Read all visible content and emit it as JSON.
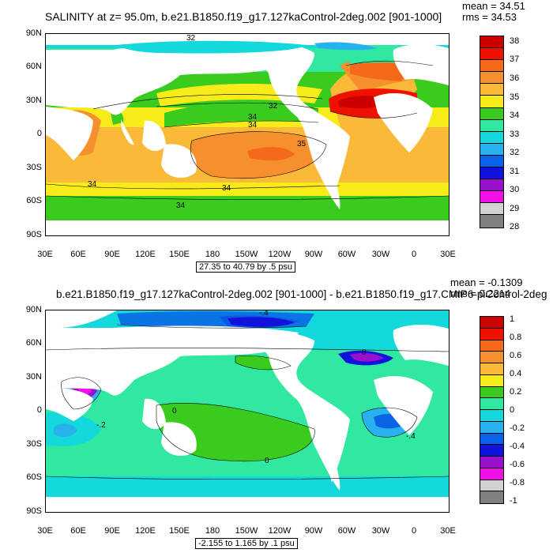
{
  "panels": [
    {
      "title": "SALINITY at z=  95.0m, b.e21.B1850.f19_g17.127kaControl-2deg.002 [901-1000]",
      "mean_label": "mean = 34.51",
      "rms_label": "rms = 34.53",
      "range_label": "27.35 to 40.79 by .5 psu",
      "contour_labels": [
        "32",
        "32",
        "34",
        "34",
        "35",
        "34",
        "34",
        "34"
      ],
      "colorbar": {
        "labels": [
          "38",
          "37",
          "36",
          "35",
          "34",
          "33",
          "32",
          "31",
          "30",
          "29",
          "28"
        ],
        "colors": [
          "#cc0000",
          "#ee1100",
          "#f56a1a",
          "#f6902e",
          "#fbb93a",
          "#f7ec19",
          "#39cc1e",
          "#31e8a0",
          "#13d8dc",
          "#27b2ee",
          "#0a63e6",
          "#1212dd",
          "#9911cc",
          "#f011e8",
          "#d2d2d2",
          "#808080"
        ]
      }
    },
    {
      "title": "b.e21.B1850.f19_g17.127kaControl-2deg.002 [901-1000] - b.e21.B1850.f19_g17.CMIP6-piControl-2deg",
      "mean_label": "mean = -0.1309",
      "rms_label": "rms = 0.2214",
      "range_label": "-2.155 to 1.165 by .1 psu",
      "contour_labels": [
        "0",
        "-.2",
        "0",
        "-.4",
        "0",
        "-.4"
      ],
      "colorbar": {
        "labels": [
          "1",
          "0.8",
          "0.6",
          "0.4",
          "0.2",
          "0",
          "-0.2",
          "-0.4",
          "-0.6",
          "-0.8",
          "-1"
        ],
        "colors": [
          "#cc0000",
          "#ee1100",
          "#f56a1a",
          "#f6902e",
          "#fbb93a",
          "#f7ec19",
          "#39cc1e",
          "#31e8a0",
          "#13d8dc",
          "#27b2ee",
          "#0a63e6",
          "#1212dd",
          "#9911cc",
          "#f011e8",
          "#d2d2d2",
          "#808080"
        ]
      }
    }
  ],
  "axes": {
    "lat_labels": [
      "90N",
      "60N",
      "30N",
      "0",
      "30S",
      "60S",
      "90S"
    ],
    "lon_labels": [
      "30E",
      "60E",
      "90E",
      "120E",
      "150E",
      "180",
      "150W",
      "120W",
      "90W",
      "60W",
      "30W",
      "0",
      "30E"
    ]
  }
}
